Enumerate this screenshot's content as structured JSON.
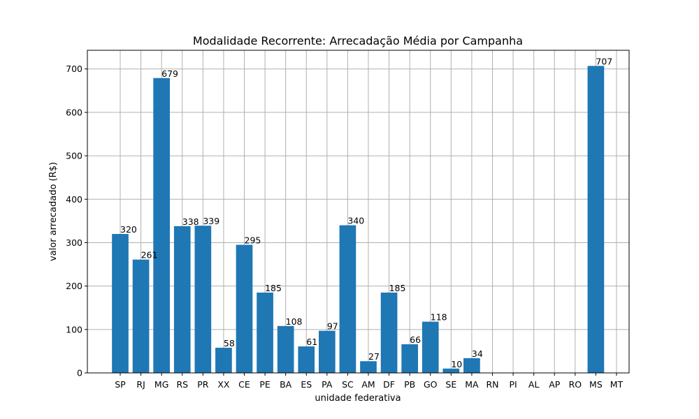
{
  "chart_data": {
    "type": "bar",
    "title": "Modalidade Recorrente: Arrecadação Média por Campanha",
    "xlabel": "unidade federativa",
    "ylabel": "valor arrecadado (R$)",
    "categories": [
      "SP",
      "RJ",
      "MG",
      "RS",
      "PR",
      "XX",
      "CE",
      "PE",
      "BA",
      "ES",
      "PA",
      "SC",
      "AM",
      "DF",
      "PB",
      "GO",
      "SE",
      "MA",
      "RN",
      "PI",
      "AL",
      "AP",
      "RO",
      "MS",
      "MT"
    ],
    "values": [
      320,
      261,
      679,
      338,
      339,
      58,
      295,
      185,
      108,
      61,
      97,
      340,
      27,
      185,
      66,
      118,
      10,
      34,
      0,
      0,
      0,
      0,
      0,
      707,
      0
    ],
    "data_labels": [
      "320",
      "261",
      "679",
      "338",
      "339",
      "58",
      "295",
      "185",
      "108",
      "61",
      "97",
      "340",
      "27",
      "185",
      "66",
      "118",
      "10",
      "34",
      "",
      "",
      "",
      "",
      "",
      "707",
      ""
    ],
    "ylim": [
      0,
      743
    ],
    "yticks": [
      0,
      100,
      200,
      300,
      400,
      500,
      600,
      700
    ],
    "grid": true,
    "bar_color": "#1f77b4"
  }
}
